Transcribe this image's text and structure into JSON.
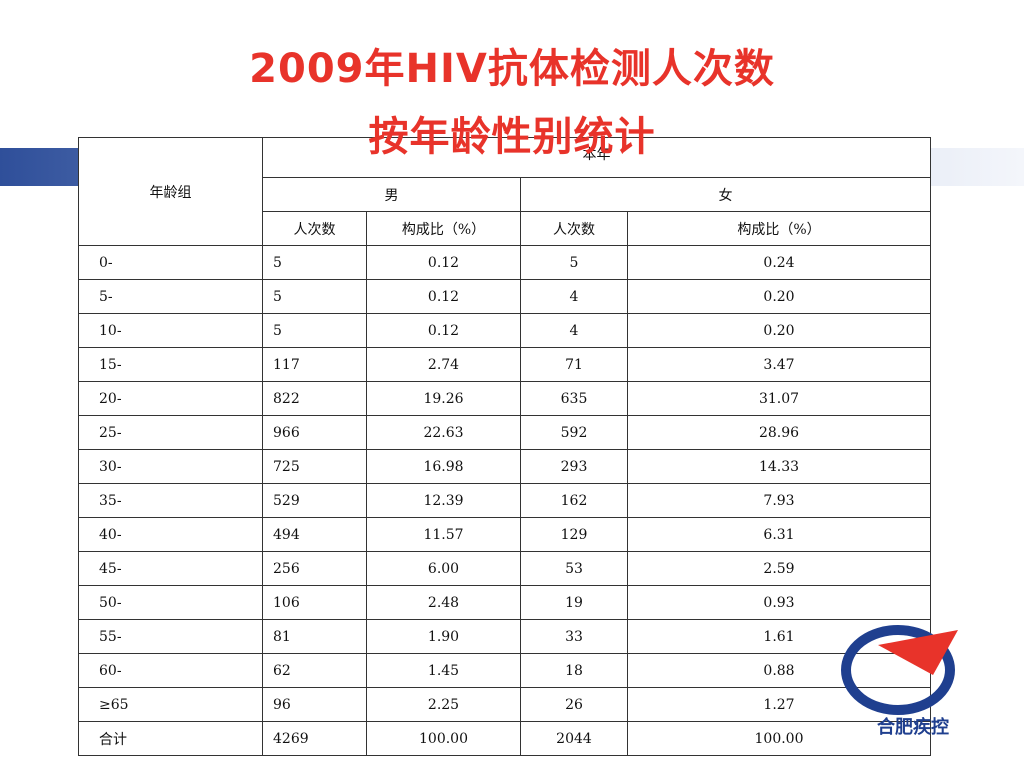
{
  "title": {
    "line1": "2009年HIV抗体检测人次数",
    "line2": "按年龄性别统计"
  },
  "table": {
    "header": {
      "age": "年龄组",
      "year": "本年",
      "male": "男",
      "female": "女",
      "male_count": "人次数",
      "male_pct": "构成比（%）",
      "female_count": "人次数",
      "female_pct": "构成比（%）"
    },
    "rows": [
      [
        "0-",
        "5",
        "0.12",
        "5",
        "0.24"
      ],
      [
        "5-",
        "5",
        "0.12",
        "4",
        "0.20"
      ],
      [
        "10-",
        "5",
        "0.12",
        "4",
        "0.20"
      ],
      [
        "15-",
        "117",
        "2.74",
        "71",
        "3.47"
      ],
      [
        "20-",
        "822",
        "19.26",
        "635",
        "31.07"
      ],
      [
        "25-",
        "966",
        "22.63",
        "592",
        "28.96"
      ],
      [
        "30-",
        "725",
        "16.98",
        "293",
        "14.33"
      ],
      [
        "35-",
        "529",
        "12.39",
        "162",
        "7.93"
      ],
      [
        "40-",
        "494",
        "11.57",
        "129",
        "6.31"
      ],
      [
        "45-",
        "256",
        "6.00",
        "53",
        "2.59"
      ],
      [
        "50-",
        "106",
        "2.48",
        "19",
        "0.93"
      ],
      [
        "55-",
        "81",
        "1.90",
        "33",
        "1.61"
      ],
      [
        "60-",
        "62",
        "1.45",
        "18",
        "0.88"
      ],
      [
        "≥65",
        "96",
        "2.25",
        "26",
        "1.27"
      ],
      [
        "合计",
        "4269",
        "100.00",
        "2044",
        "100.00"
      ]
    ]
  },
  "logo": {
    "text": "合肥疾控"
  }
}
